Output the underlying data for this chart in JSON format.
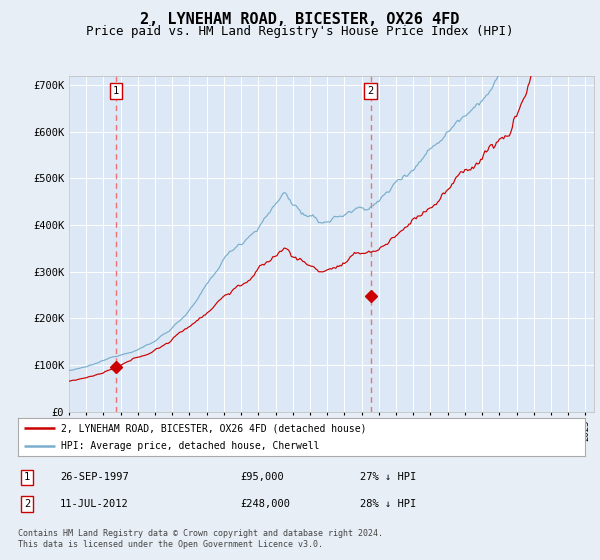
{
  "title": "2, LYNEHAM ROAD, BICESTER, OX26 4FD",
  "subtitle": "Price paid vs. HM Land Registry's House Price Index (HPI)",
  "title_fontsize": 11,
  "subtitle_fontsize": 9,
  "background_color": "#e8eef5",
  "plot_bg_color": "#dce8f5",
  "legend_label_red": "2, LYNEHAM ROAD, BICESTER, OX26 4FD (detached house)",
  "legend_label_blue": "HPI: Average price, detached house, Cherwell",
  "annotation1_label": "1",
  "annotation1_date": "26-SEP-1997",
  "annotation1_price": "£95,000",
  "annotation1_hpi": "27% ↓ HPI",
  "annotation2_label": "2",
  "annotation2_date": "11-JUL-2012",
  "annotation2_price": "£248,000",
  "annotation2_hpi": "28% ↓ HPI",
  "footer": "Contains HM Land Registry data © Crown copyright and database right 2024.\nThis data is licensed under the Open Government Licence v3.0.",
  "ylim": [
    0,
    720000
  ],
  "ytick_labels": [
    "£0",
    "£100K",
    "£200K",
    "£300K",
    "£400K",
    "£500K",
    "£600K",
    "£700K"
  ],
  "ytick_values": [
    0,
    100000,
    200000,
    300000,
    400000,
    500000,
    600000,
    700000
  ],
  "red_color": "#cc0000",
  "blue_color": "#7aaecc",
  "dashed_color": "#ee6666",
  "purchase1_year": 1997.73,
  "purchase1_price": 95000,
  "purchase2_year": 2012.53,
  "purchase2_price": 248000,
  "xmin": 1995.0,
  "xmax": 2025.5
}
